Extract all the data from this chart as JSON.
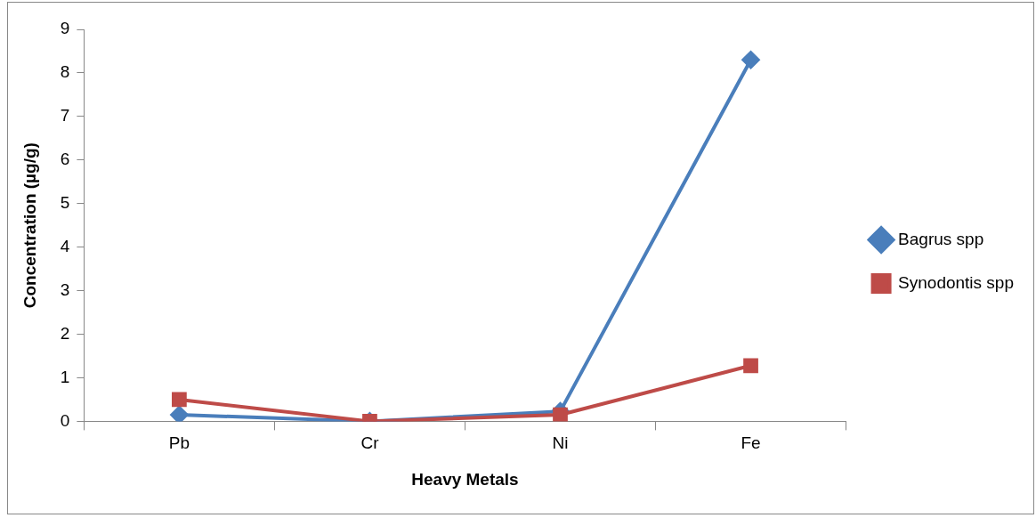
{
  "chart_data": {
    "type": "line",
    "xlabel": "Heavy Metals",
    "ylabel": "Concentration (µg/g)",
    "categories": [
      "Pb",
      "Cr",
      "Ni",
      "Fe"
    ],
    "series": [
      {
        "name": "Bagrus spp",
        "color": "#4a7ebb",
        "marker": "diamond",
        "values": [
          0.15,
          0.0,
          0.23,
          8.3
        ]
      },
      {
        "name": "Synodontis spp",
        "color": "#be4b48",
        "marker": "square",
        "values": [
          0.5,
          0.0,
          0.15,
          1.28
        ]
      }
    ],
    "ylim": [
      0,
      9
    ],
    "yticks": [
      0,
      1,
      2,
      3,
      4,
      5,
      6,
      7,
      8,
      9
    ],
    "grid": false,
    "legend": "right",
    "line_style": "solid"
  }
}
